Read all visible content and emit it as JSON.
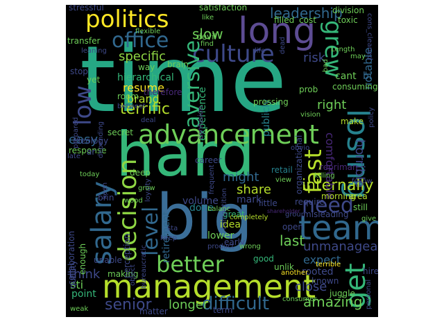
{
  "background": "#000000",
  "palette": [
    "#fde725",
    "#b5de2b",
    "#6ece58",
    "#35b779",
    "#1f9e89",
    "#26828e",
    "#31688e",
    "#3e4989",
    "#482878",
    "#440154"
  ],
  "words": [
    {
      "text": "time",
      "color": "#26a784"
    },
    {
      "text": "hard",
      "color": "#35b779"
    },
    {
      "text": "big",
      "color": "#3b6e98"
    },
    {
      "text": "management",
      "color": "#b5de2b"
    },
    {
      "text": "advancement",
      "color": "#6ece58"
    },
    {
      "text": "politics",
      "color": "#fde725"
    },
    {
      "text": "long",
      "color": "#5d4c93"
    },
    {
      "text": "office",
      "color": "#31688e"
    },
    {
      "text": "culture",
      "color": "#3e4989"
    },
    {
      "text": "team",
      "color": "#31688e"
    },
    {
      "text": "salary",
      "color": "#31688e"
    },
    {
      "text": "decision",
      "color": "#8fd744"
    },
    {
      "text": "losing",
      "color": "#26828e"
    },
    {
      "text": "better",
      "color": "#6ece58"
    },
    {
      "text": "get",
      "color": "#35b779"
    },
    {
      "text": "need",
      "color": "#3e4989"
    },
    {
      "text": "fast",
      "color": "#b5de2b"
    },
    {
      "text": "grew",
      "color": "#35b779"
    },
    {
      "text": "level",
      "color": "#31688e"
    },
    {
      "text": "low",
      "color": "#3e4989"
    },
    {
      "text": "difficult",
      "color": "#31688e"
    },
    {
      "text": "senior",
      "color": "#3e4989"
    },
    {
      "text": "aversive",
      "color": "#35b779"
    },
    {
      "text": "slow",
      "color": "#6ece58"
    },
    {
      "text": "leadership",
      "color": "#31688e"
    },
    {
      "text": "specific",
      "color": "#8fd744"
    },
    {
      "text": "risk",
      "color": "#3e4989"
    },
    {
      "text": "might",
      "color": "#31688e"
    },
    {
      "text": "share",
      "color": "#b5de2b"
    },
    {
      "text": "internally",
      "color": "#b5de2b"
    },
    {
      "text": "unmanageable",
      "color": "#3e4989"
    },
    {
      "text": "amazing",
      "color": "#6ece58"
    },
    {
      "text": "close",
      "color": "#3e4989"
    },
    {
      "text": "expect",
      "color": "#31688e"
    },
    {
      "text": "last",
      "color": "#6ece58"
    },
    {
      "text": "terrific",
      "color": "#b5de2b"
    },
    {
      "text": "brand",
      "color": "#b5de2b"
    },
    {
      "text": "resume",
      "color": "#fde725"
    },
    {
      "text": "right",
      "color": "#6ece58"
    },
    {
      "text": "experience",
      "color": "#35b779"
    },
    {
      "text": "publicly",
      "color": "#26828e"
    },
    {
      "text": "horrible",
      "color": "#3e4989"
    },
    {
      "text": "comfortable",
      "color": "#482878"
    },
    {
      "text": "notable",
      "color": "#31688e"
    },
    {
      "text": "cant",
      "color": "#6ece58"
    },
    {
      "text": "bi",
      "color": "#31688e"
    },
    {
      "text": "consuming",
      "color": "#6ece58"
    },
    {
      "text": "prob",
      "color": "#6ece58"
    },
    {
      "text": "pressing",
      "color": "#6ece58"
    },
    {
      "text": "organizational",
      "color": "#3e4989"
    },
    {
      "text": "easy",
      "color": "#31688e"
    },
    {
      "text": "think",
      "color": "#3e4989"
    },
    {
      "text": "point",
      "color": "#35b779"
    },
    {
      "text": "sti",
      "color": "#6ece58"
    },
    {
      "text": "longer",
      "color": "#6ece58"
    },
    {
      "text": "idea",
      "color": "#b5de2b"
    },
    {
      "text": "lower",
      "color": "#6ece58"
    },
    {
      "text": "done",
      "color": "#26828e"
    },
    {
      "text": "volume",
      "color": "#3e4989"
    },
    {
      "text": "mark",
      "color": "#3e4989"
    },
    {
      "text": "retirement",
      "color": "#31688e"
    },
    {
      "text": "hierarchical",
      "color": "#35b779"
    },
    {
      "text": "secret",
      "color": "#6ece58"
    },
    {
      "text": "response",
      "color": "#6ece58"
    },
    {
      "text": "ideology",
      "color": "#3e4989"
    },
    {
      "text": "perception",
      "color": "#3e4989"
    },
    {
      "text": "unable",
      "color": "#3e4989"
    },
    {
      "text": "making",
      "color": "#6ece58"
    },
    {
      "text": "good",
      "color": "#35b779"
    },
    {
      "text": "early",
      "color": "#3e4989"
    },
    {
      "text": "open",
      "color": "#3e4989"
    },
    {
      "text": "little",
      "color": "#3e4989"
    },
    {
      "text": "great",
      "color": "#35b779"
    },
    {
      "text": "retail",
      "color": "#26828e"
    },
    {
      "text": "area",
      "color": "#b5de2b"
    },
    {
      "text": "misleading",
      "color": "#3e4989"
    },
    {
      "text": "group",
      "color": "#3e4989"
    },
    {
      "text": "rooted",
      "color": "#3e4989"
    },
    {
      "text": "known",
      "color": "#3e4989"
    },
    {
      "text": "juggle",
      "color": "#6ece58"
    },
    {
      "text": "hire",
      "color": "#3e4989"
    },
    {
      "text": "personal",
      "color": "#3e4989"
    },
    {
      "text": "unlik",
      "color": "#6ece58"
    },
    {
      "text": "terrible",
      "color": "#fde725"
    },
    {
      "text": "consumer",
      "color": "#6ece58"
    },
    {
      "text": "another",
      "color": "#fde725"
    },
    {
      "text": "matter",
      "color": "#3e4989"
    },
    {
      "text": "term",
      "color": "#3e4989"
    },
    {
      "text": "weak",
      "color": "#6ece58"
    },
    {
      "text": "quality",
      "color": "#3e4989"
    },
    {
      "text": "collaboration",
      "color": "#3e4989"
    },
    {
      "text": "enough",
      "color": "#6ece58"
    },
    {
      "text": "today",
      "color": "#6ece58"
    },
    {
      "text": "late",
      "color": "#3e4989"
    },
    {
      "text": "keen",
      "color": "#3e4989"
    },
    {
      "text": "brin",
      "color": "#3e4989"
    },
    {
      "text": "wood",
      "color": "#6ece58"
    },
    {
      "text": "bureaucratic",
      "color": "#3e4989"
    },
    {
      "text": "keep",
      "color": "#3e4989"
    },
    {
      "text": "product",
      "color": "#3e4989"
    },
    {
      "text": "object",
      "color": "#3e4989"
    },
    {
      "text": "sta",
      "color": "#3e4989"
    },
    {
      "text": "deep",
      "color": "#6ece58"
    },
    {
      "text": "loyalty",
      "color": "#3e4989"
    },
    {
      "text": "grow",
      "color": "#6ece58"
    },
    {
      "text": "career",
      "color": "#3e4989"
    },
    {
      "text": "frequent",
      "color": "#3e4989"
    },
    {
      "text": "competition",
      "color": "#3e4989"
    },
    {
      "text": "balanc",
      "color": "#6ece58"
    },
    {
      "text": "completely",
      "color": "#b5de2b"
    },
    {
      "text": "require",
      "color": "#3e4989"
    },
    {
      "text": "view",
      "color": "#6ece58"
    },
    {
      "text": "killing",
      "color": "#6ece58"
    },
    {
      "text": "morning",
      "color": "#b5de2b"
    },
    {
      "text": "still",
      "color": "#6ece58"
    },
    {
      "text": "give",
      "color": "#6ece58"
    },
    {
      "text": "follow",
      "color": "#3e4989"
    },
    {
      "text": "repriman",
      "color": "#482878"
    },
    {
      "text": "obvio",
      "color": "#3e4989"
    },
    {
      "text": "vision",
      "color": "#6ece58"
    },
    {
      "text": "make",
      "color": "#b5de2b"
    },
    {
      "text": "policy",
      "color": "#3e4989"
    },
    {
      "text": "stressful",
      "color": "#3e4989"
    },
    {
      "text": "satisfaction",
      "color": "#6ece58"
    },
    {
      "text": "division",
      "color": "#6ece58"
    },
    {
      "text": "toxic",
      "color": "#6ece58"
    },
    {
      "text": "filled",
      "color": "#6ece58"
    },
    {
      "text": "cost",
      "color": "#6ece58"
    },
    {
      "text": "cons_cleaned",
      "color": "#3e4989"
    },
    {
      "text": "like",
      "color": "#6ece58"
    },
    {
      "text": "flexible",
      "color": "#6ece58"
    },
    {
      "text": "devil",
      "color": "#6ece58"
    },
    {
      "text": "life",
      "color": "#3e4989"
    },
    {
      "text": "dead",
      "color": "#3e4989"
    },
    {
      "text": "bad",
      "color": "#6ece58"
    },
    {
      "text": "Length",
      "color": "#6ece58"
    },
    {
      "text": "may",
      "color": "#6ece58"
    },
    {
      "text": "transfer",
      "color": "#6ece58"
    },
    {
      "text": "find",
      "color": "#6ece58"
    },
    {
      "text": "leaning",
      "color": "#3e4989"
    },
    {
      "text": "brain",
      "color": "#6ece58"
    },
    {
      "text": "yet",
      "color": "#6ece58"
    },
    {
      "text": "way",
      "color": "#6ece58"
    },
    {
      "text": "stop",
      "color": "#3e4989"
    },
    {
      "text": "room",
      "color": "#6ece58"
    },
    {
      "text": "therefore",
      "color": "#482878"
    },
    {
      "text": "depending",
      "color": "#3e4989"
    },
    {
      "text": "prepared",
      "color": "#3e4989"
    },
    {
      "text": "betweet",
      "color": "#3e4989"
    },
    {
      "text": "confusion",
      "color": "#482878"
    },
    {
      "text": "deal",
      "color": "#3e4989"
    },
    {
      "text": "ar",
      "color": "#3e4989"
    },
    {
      "text": "wrong",
      "color": "#6ece58"
    },
    {
      "text": "shareholder",
      "color": "#482878"
    }
  ]
}
